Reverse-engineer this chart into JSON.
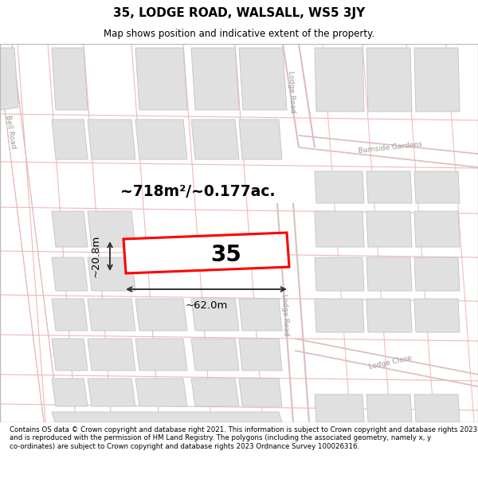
{
  "title": "35, LODGE ROAD, WALSALL, WS5 3JY",
  "subtitle": "Map shows position and indicative extent of the property.",
  "footer": "Contains OS data © Crown copyright and database right 2021. This information is subject to Crown copyright and database rights 2023 and is reproduced with the permission of HM Land Registry. The polygons (including the associated geometry, namely x, y co-ordinates) are subject to Crown copyright and database rights 2023 Ordnance Survey 100026316.",
  "area_label": "~718m²/~0.177ac.",
  "width_label": "~62.0m",
  "height_label": "~20.8m",
  "number_label": "35",
  "building_fill": "#e0e0e0",
  "building_edge": "#c8c8c8",
  "road_pink": "#f0b8b8",
  "road_gray": "#c8c8c8",
  "highlight_fill": "#ffffff",
  "highlight_stroke": "#ff0000"
}
